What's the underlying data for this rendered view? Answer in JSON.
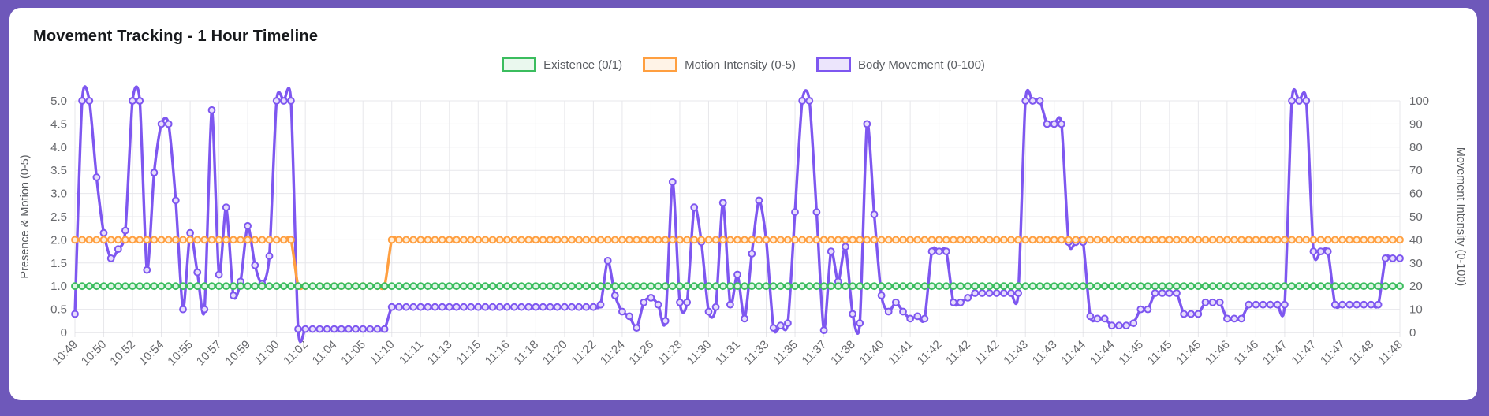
{
  "page": {
    "background_color": "#6e58ba",
    "card_color": "#ffffff"
  },
  "card": {
    "title": "Movement Tracking - 1 Hour Timeline"
  },
  "legend": [
    {
      "label": "Existence (0/1)",
      "color": "#3bbd5e",
      "fill": "#eaf8ee"
    },
    {
      "label": "Motion Intensity (0-5)",
      "color": "#ff9f40",
      "fill": "#fff3e7"
    },
    {
      "label": "Body Movement (0-100)",
      "color": "#7e57f0",
      "fill": "#ece5fc"
    }
  ],
  "chart_data": {
    "type": "line",
    "title": "Movement Tracking - 1 Hour Timeline",
    "grid": true,
    "legend_position": "top",
    "points_per_label": 4,
    "x_labels": [
      "10:49",
      "10:50",
      "10:52",
      "10:54",
      "10:55",
      "10:57",
      "10:59",
      "11:00",
      "11:02",
      "11:04",
      "11:05",
      "11:10",
      "11:11",
      "11:13",
      "11:15",
      "11:16",
      "11:18",
      "11:20",
      "11:22",
      "11:24",
      "11:26",
      "11:28",
      "11:30",
      "11:31",
      "11:33",
      "11:35",
      "11:37",
      "11:38",
      "11:40",
      "11:41",
      "11:42",
      "11:42",
      "11:42",
      "11:43",
      "11:43",
      "11:44",
      "11:44",
      "11:45",
      "11:45",
      "11:45",
      "11:46",
      "11:46",
      "11:47",
      "11:47",
      "11:47",
      "11:48",
      "11:48"
    ],
    "left_axis": {
      "label": "Presence & Motion (0-5)",
      "min": 0,
      "max": 5,
      "ticks": [
        "0",
        "0.5",
        "1.0",
        "1.5",
        "2.0",
        "2.5",
        "3.0",
        "3.5",
        "4.0",
        "4.5",
        "5.0"
      ]
    },
    "right_axis": {
      "label": "Movement Intensity (0-100)",
      "min": 0,
      "max": 100,
      "ticks": [
        "0",
        "10",
        "20",
        "30",
        "40",
        "50",
        "60",
        "70",
        "80",
        "90",
        "100"
      ]
    },
    "series": [
      {
        "name": "Existence (0/1)",
        "axis": "left",
        "color": "#3bbd5e",
        "point_fill": "#dff4e6",
        "values": [
          1,
          1,
          1,
          1,
          1,
          1,
          1,
          1,
          1,
          1,
          1,
          1,
          1,
          1,
          1,
          1,
          1,
          1,
          1,
          1,
          1,
          1,
          1,
          1,
          1,
          1,
          1,
          1,
          1,
          1,
          1,
          1,
          1,
          1,
          1,
          1,
          1,
          1,
          1,
          1,
          1,
          1,
          1,
          1,
          1,
          1,
          1,
          1,
          1,
          1,
          1,
          1,
          1,
          1,
          1,
          1,
          1,
          1,
          1,
          1,
          1,
          1,
          1,
          1,
          1,
          1,
          1,
          1,
          1,
          1,
          1,
          1,
          1,
          1,
          1,
          1,
          1,
          1,
          1,
          1,
          1,
          1,
          1,
          1,
          1,
          1,
          1,
          1,
          1,
          1,
          1,
          1,
          1,
          1,
          1,
          1,
          1,
          1,
          1,
          1,
          1,
          1,
          1,
          1,
          1,
          1,
          1,
          1,
          1,
          1,
          1,
          1,
          1,
          1,
          1,
          1,
          1,
          1,
          1,
          1,
          1,
          1,
          1,
          1,
          1,
          1,
          1,
          1,
          1,
          1,
          1,
          1,
          1,
          1,
          1,
          1,
          1,
          1,
          1,
          1,
          1,
          1,
          1,
          1,
          1,
          1,
          1,
          1,
          1,
          1,
          1,
          1,
          1,
          1,
          1,
          1,
          1,
          1,
          1,
          1,
          1,
          1,
          1,
          1,
          1,
          1,
          1,
          1,
          1,
          1,
          1,
          1,
          1,
          1,
          1,
          1,
          1,
          1,
          1,
          1,
          1,
          1,
          1,
          1,
          1
        ]
      },
      {
        "name": "Motion Intensity (0-5)",
        "axis": "left",
        "color": "#ff9f40",
        "point_fill": "#ffeeda",
        "values": [
          2,
          2,
          2,
          2,
          2,
          2,
          2,
          2,
          2,
          2,
          2,
          2,
          2,
          2,
          2,
          2,
          2,
          2,
          2,
          2,
          2,
          2,
          2,
          2,
          2,
          2,
          2,
          2,
          2,
          2,
          2,
          1,
          1,
          1,
          1,
          1,
          1,
          1,
          1,
          1,
          1,
          1,
          1,
          1,
          2,
          2,
          2,
          2,
          2,
          2,
          2,
          2,
          2,
          2,
          2,
          2,
          2,
          2,
          2,
          2,
          2,
          2,
          2,
          2,
          2,
          2,
          2,
          2,
          2,
          2,
          2,
          2,
          2,
          2,
          2,
          2,
          2,
          2,
          2,
          2,
          2,
          2,
          2,
          2,
          2,
          2,
          2,
          2,
          2,
          2,
          2,
          2,
          2,
          2,
          2,
          2,
          2,
          2,
          2,
          2,
          2,
          2,
          2,
          2,
          2,
          2,
          2,
          2,
          2,
          2,
          2,
          2,
          2,
          2,
          2,
          2,
          2,
          2,
          2,
          2,
          2,
          2,
          2,
          2,
          2,
          2,
          2,
          2,
          2,
          2,
          2,
          2,
          2,
          2,
          2,
          2,
          2,
          2,
          2,
          2,
          2,
          2,
          2,
          2,
          2,
          2,
          2,
          2,
          2,
          2,
          2,
          2,
          2,
          2,
          2,
          2,
          2,
          2,
          2,
          2,
          2,
          2,
          2,
          2,
          2,
          2,
          2,
          2,
          2,
          2,
          2,
          2,
          2,
          2,
          2,
          2,
          2,
          2,
          2,
          2,
          2,
          2,
          2,
          2,
          2
        ]
      },
      {
        "name": "Body Movement (0-100)",
        "axis": "right",
        "color": "#7e57f0",
        "point_fill": "#e7defb",
        "values": [
          8,
          100,
          100,
          67,
          43,
          32,
          36,
          44,
          100,
          100,
          27,
          69,
          90,
          90,
          57,
          10,
          43,
          26,
          10,
          96,
          25,
          54,
          16,
          22,
          46,
          29,
          21,
          33,
          100,
          100,
          100,
          1.5,
          1.5,
          1.5,
          1.5,
          1.5,
          1.5,
          1.5,
          1.5,
          1.5,
          1.5,
          1.5,
          1.5,
          1.5,
          11,
          11,
          11,
          11,
          11,
          11,
          11,
          11,
          11,
          11,
          11,
          11,
          11,
          11,
          11,
          11,
          11,
          11,
          11,
          11,
          11,
          11,
          11,
          11,
          11,
          11,
          11,
          11,
          11,
          12,
          31,
          16,
          9,
          7,
          2,
          13,
          15,
          12,
          5,
          65,
          13,
          13,
          54,
          39,
          9,
          11,
          56,
          12,
          25,
          6,
          34,
          57,
          40,
          2,
          3,
          4,
          52,
          100,
          100,
          52,
          1,
          35,
          22,
          37,
          8,
          4,
          90,
          51,
          16,
          9,
          13,
          9,
          6,
          7,
          6,
          35,
          35,
          35,
          13,
          13,
          15,
          17,
          17,
          17,
          17,
          17,
          17,
          17,
          100,
          100,
          100,
          90,
          90,
          90,
          39,
          39,
          39,
          7,
          6,
          6,
          3,
          3,
          3,
          4,
          10,
          10,
          17,
          17,
          17,
          17,
          8,
          8,
          8,
          13,
          13,
          13,
          6,
          6,
          6,
          12,
          12,
          12,
          12,
          12,
          12,
          100,
          100,
          100,
          35,
          35,
          35,
          12,
          12,
          12,
          12,
          12,
          12,
          12,
          32,
          32,
          32
        ]
      }
    ]
  }
}
